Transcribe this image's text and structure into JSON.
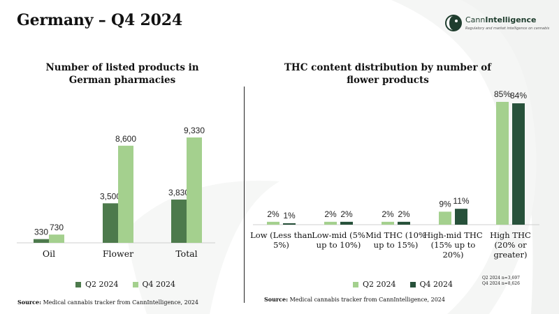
{
  "page_title": "Germany – Q4 2024",
  "logo": {
    "name_part1": "Cann",
    "name_part2": "Intelligence",
    "tagline": "Regulatory and market intelligence on cannabis"
  },
  "colors": {
    "q2": "#4d7a4c",
    "q4": "#a4d08e",
    "q2_right": "#a4d08e",
    "q4_right": "#27513a",
    "swoosh": "#f0f1f0"
  },
  "left_chart": {
    "title_line1": "Number of listed products in",
    "title_line2": "German pharmacies",
    "legend": {
      "q2": "Q2 2024",
      "q4": "Q4 2024"
    },
    "source_bold": "Source:",
    "source_text": " Medical cannabis tracker from CannIntelligence, 2024"
  },
  "right_chart": {
    "title_line1": "THC content distribution by number of",
    "title_line2": "flower products",
    "legend": {
      "q2": "Q2 2024",
      "q4": "Q4 2024"
    },
    "n_note_line1": "Q2 2024 n=3,697",
    "n_note_line2": "Q4 2024 n=8,626",
    "source_bold": "Source:",
    "source_text": " Medical cannabis tracker from CannIntelligence, 2024"
  },
  "chart_data": [
    {
      "type": "bar",
      "title": "Number of listed products in German pharmacies",
      "categories": [
        "Oil",
        "Flower",
        "Total"
      ],
      "series": [
        {
          "name": "Q2 2024",
          "values": [
            330,
            3500,
            3830
          ],
          "labels": [
            "330",
            "3,500",
            "3,830"
          ]
        },
        {
          "name": "Q4 2024",
          "values": [
            730,
            8600,
            9330
          ],
          "labels": [
            "730",
            "8,600",
            "9,330"
          ]
        }
      ],
      "ylim": [
        0,
        10000
      ],
      "grid": false,
      "legend": "bottom"
    },
    {
      "type": "bar",
      "title": "THC content distribution by number of flower products",
      "categories": [
        [
          "Low (Less than",
          "5%)"
        ],
        [
          "Low-mid (5%",
          "up to 10%)"
        ],
        [
          "Mid THC (10%",
          "up to 15%)"
        ],
        [
          "High-mid THC",
          "(15% up to",
          "20%)"
        ],
        [
          "High THC",
          "(20% or",
          "greater)"
        ]
      ],
      "series": [
        {
          "name": "Q2 2024",
          "values": [
            2,
            2,
            2,
            9,
            85
          ],
          "labels": [
            "2%",
            "2%",
            "2%",
            "9%",
            "85%"
          ]
        },
        {
          "name": "Q4 2024",
          "values": [
            1,
            2,
            2,
            11,
            84
          ],
          "labels": [
            "1%",
            "2%",
            "2%",
            "11%",
            "84%"
          ]
        }
      ],
      "ylim": [
        0,
        100
      ],
      "grid": false,
      "legend": "bottom"
    }
  ]
}
